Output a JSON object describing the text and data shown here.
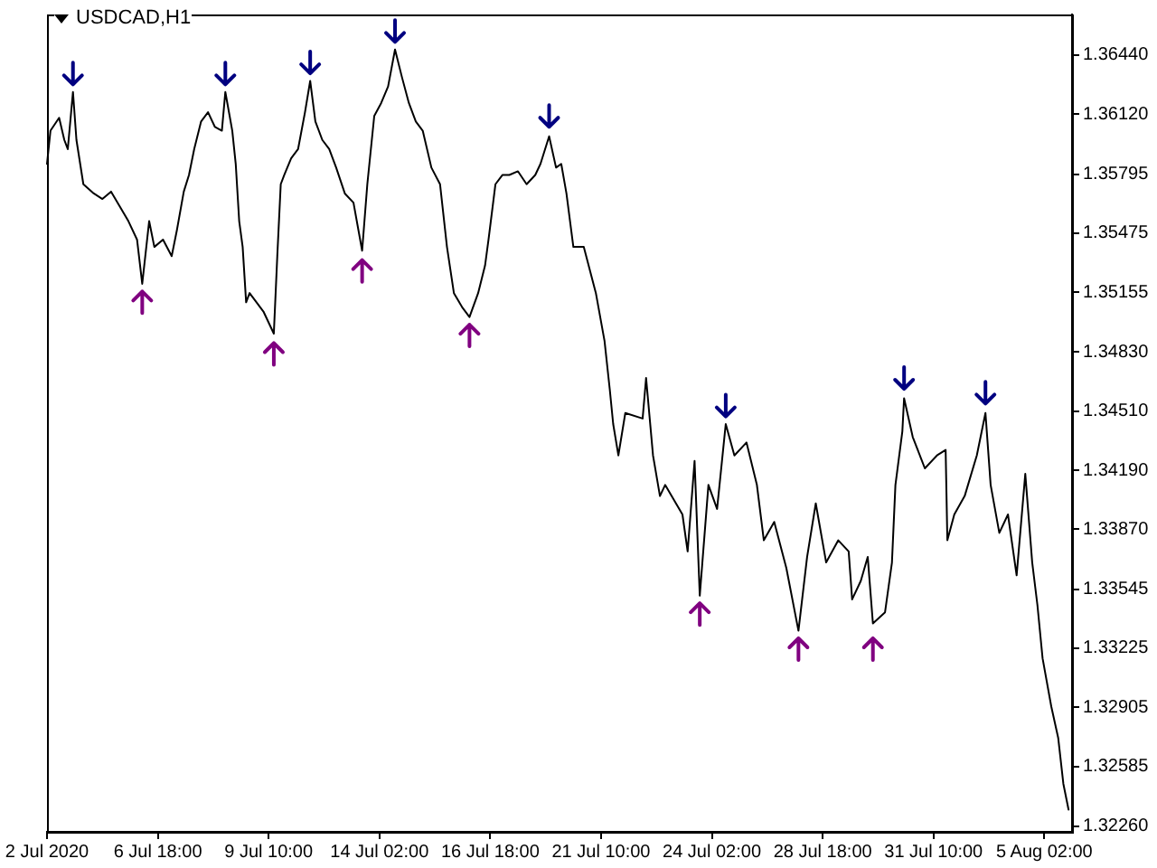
{
  "chart_data": {
    "type": "line",
    "title": "USDCAD,H1",
    "categories": [
      "2 Jul 2020",
      null,
      null,
      null,
      null,
      null,
      null,
      null,
      null,
      null,
      null,
      null,
      null,
      null,
      null,
      null,
      null,
      null,
      null,
      null,
      null,
      null,
      null,
      null,
      null,
      null,
      null,
      null,
      null,
      null,
      null,
      null,
      null,
      null,
      null,
      null,
      null,
      null,
      null,
      null,
      null,
      null,
      null,
      null,
      null,
      null,
      null,
      null,
      null,
      null,
      null,
      null,
      null,
      null,
      null,
      null,
      null,
      null,
      null,
      null,
      null,
      null,
      null,
      null,
      "6 Jul 18:00",
      null,
      null,
      null,
      null,
      null,
      null,
      null,
      null,
      null,
      null,
      null,
      null,
      null,
      null,
      null,
      null,
      null,
      null,
      null,
      null,
      null,
      null,
      null,
      null,
      null,
      null,
      null,
      null,
      null,
      null,
      null,
      null,
      null,
      null,
      null,
      null,
      null,
      null,
      null,
      null,
      null,
      null,
      null,
      null,
      null,
      null,
      null,
      null,
      null,
      null,
      null,
      null,
      null,
      null,
      null,
      null,
      null,
      null,
      null,
      null,
      null,
      null,
      null,
      "9 Jul 10:00",
      null,
      null,
      null,
      null,
      null,
      null,
      null,
      null,
      null,
      null,
      null,
      null,
      null,
      null,
      null,
      null,
      null,
      null,
      null,
      null,
      null,
      null,
      null,
      null,
      null,
      null,
      null,
      null,
      null,
      null,
      null,
      null,
      null,
      null,
      null,
      null,
      null,
      null,
      null,
      null,
      null,
      null,
      null,
      null,
      null,
      null,
      null,
      null,
      null,
      null,
      null,
      null,
      null,
      null,
      null,
      null,
      null,
      null,
      null,
      null,
      null,
      null,
      null,
      "14 Jul 02:00",
      null,
      null,
      null,
      null,
      null,
      null,
      null,
      null,
      null,
      null,
      null,
      null,
      null,
      null,
      null,
      null,
      null,
      null,
      null,
      null,
      null,
      null,
      null,
      null,
      null,
      null,
      null,
      null,
      null,
      null,
      null,
      null,
      null,
      null,
      null,
      null,
      null,
      null,
      null,
      null,
      null,
      null,
      null,
      null,
      null,
      null,
      null,
      null,
      null,
      null,
      null,
      null,
      null,
      null,
      null,
      null,
      null,
      null,
      null,
      null,
      null,
      null,
      null,
      "16 Jul 18:00",
      null,
      null,
      null,
      null,
      null,
      null,
      null,
      null,
      null,
      null,
      null,
      null,
      null,
      null,
      null,
      null,
      null,
      null,
      null,
      null,
      null,
      null,
      null,
      null,
      null,
      null,
      null,
      null,
      null,
      null,
      null,
      null,
      null,
      null,
      null,
      null,
      null,
      null,
      null,
      null,
      null,
      null,
      null,
      null,
      null,
      null,
      null,
      null,
      null,
      null,
      null,
      null,
      null,
      null,
      null,
      null,
      null,
      null,
      null,
      null,
      null,
      null,
      null,
      "21 Jul 10:00",
      null,
      null,
      null,
      null,
      null,
      null,
      null,
      null,
      null,
      null,
      null,
      null,
      null,
      null,
      null,
      null,
      null,
      null,
      null,
      null,
      null,
      null,
      null,
      null,
      null,
      null,
      null,
      null,
      null,
      null,
      null,
      null,
      null,
      null,
      null,
      null,
      null,
      null,
      null,
      null,
      null,
      null,
      null,
      null,
      null,
      null,
      null,
      null,
      null,
      null,
      null,
      null,
      null,
      null,
      null,
      null,
      null,
      null,
      null,
      null,
      null,
      null,
      null,
      "24 Jul 02:00",
      null,
      null,
      null,
      null,
      null,
      null,
      null,
      null,
      null,
      null,
      null,
      null,
      null,
      null,
      null,
      null,
      null,
      null,
      null,
      null,
      null,
      null,
      null,
      null,
      null,
      null,
      null,
      null,
      null,
      null,
      null,
      null,
      null,
      null,
      null,
      null,
      null,
      null,
      null,
      null,
      null,
      null,
      null,
      null,
      null,
      null,
      null,
      null,
      null,
      null,
      null,
      null,
      null,
      null,
      null,
      null,
      null,
      null,
      null,
      null,
      null,
      null,
      null,
      "28 Jul 18:00",
      null,
      null,
      null,
      null,
      null,
      null,
      null,
      null,
      null,
      null,
      null,
      null,
      null,
      null,
      null,
      null,
      null,
      null,
      null,
      null,
      null,
      null,
      null,
      null,
      null,
      null,
      null,
      null,
      null,
      null,
      null,
      null,
      null,
      null,
      null,
      null,
      null,
      null,
      null,
      null,
      null,
      null,
      null,
      null,
      null,
      null,
      null,
      null,
      null,
      null,
      null,
      null,
      null,
      null,
      null,
      null,
      null,
      null,
      null,
      null,
      null,
      null,
      null,
      "31 Jul 10:00",
      null,
      null,
      null,
      null,
      null,
      null,
      null,
      null,
      null,
      null,
      null,
      null,
      null,
      null,
      null,
      null,
      null,
      null,
      null,
      null,
      null,
      null,
      null,
      null,
      null,
      null,
      null,
      null,
      null,
      null,
      null,
      null,
      null,
      null,
      null,
      null,
      null,
      null,
      null,
      null,
      null,
      null,
      null,
      null,
      null,
      null,
      null,
      null,
      null,
      null,
      null,
      null,
      null,
      null,
      null,
      null,
      null,
      null,
      null,
      null,
      null,
      null,
      null,
      "5 Aug 02:00",
      null,
      null,
      null,
      null,
      null,
      null,
      null,
      null,
      null,
      null,
      null,
      null,
      null,
      null,
      null,
      null
    ],
    "series": [
      {
        "color": "#000000",
        "values": [
          1.3585,
          null,
          1.3603,
          null,
          null,
          null,
          null,
          1.361,
          null,
          null,
          1.3598,
          null,
          1.3593,
          null,
          null,
          1.3624,
          null,
          1.3598,
          null,
          null,
          null,
          1.3574,
          null,
          null,
          null,
          null,
          null,
          1.3569,
          null,
          null,
          null,
          null,
          1.3566,
          null,
          null,
          null,
          null,
          1.357,
          null,
          null,
          null,
          null,
          1.3562,
          null,
          null,
          null,
          null,
          1.3554,
          null,
          null,
          null,
          null,
          1.3544,
          null,
          null,
          1.352,
          null,
          null,
          null,
          1.3554,
          null,
          null,
          1.354,
          null,
          null,
          null,
          null,
          1.3544,
          null,
          null,
          null,
          null,
          1.3535,
          null,
          null,
          1.3549,
          null,
          null,
          null,
          1.357,
          null,
          null,
          1.3579,
          null,
          null,
          1.3593,
          null,
          null,
          null,
          1.3608,
          null,
          null,
          null,
          1.3613,
          null,
          null,
          null,
          1.3605,
          null,
          null,
          null,
          1.3603,
          null,
          1.3624,
          null,
          null,
          null,
          1.3603,
          null,
          1.3585,
          null,
          1.3554,
          null,
          1.354,
          null,
          1.351,
          null,
          1.3515,
          null,
          null,
          null,
          1.351,
          null,
          null,
          null,
          1.3505,
          null,
          null,
          null,
          null,
          null,
          1.3493,
          null,
          1.3535,
          null,
          1.3574,
          null,
          1.3579,
          null,
          null,
          null,
          1.3588,
          null,
          null,
          null,
          1.3593,
          null,
          null,
          null,
          1.3613,
          null,
          null,
          1.363,
          null,
          null,
          1.3608,
          null,
          null,
          null,
          1.3598,
          null,
          null,
          null,
          1.3593,
          null,
          null,
          null,
          1.3583,
          null,
          null,
          null,
          null,
          1.3569,
          null,
          null,
          null,
          null,
          1.3564,
          null,
          null,
          null,
          null,
          1.3538,
          null,
          null,
          1.3574,
          null,
          null,
          null,
          1.3611,
          null,
          null,
          null,
          1.3618,
          null,
          null,
          null,
          1.3627,
          null,
          null,
          null,
          1.3647,
          null,
          null,
          null,
          1.3632,
          null,
          null,
          null,
          1.3618,
          null,
          null,
          null,
          1.3608,
          null,
          null,
          null,
          1.3603,
          null,
          null,
          null,
          null,
          1.3583,
          null,
          null,
          null,
          null,
          1.3574,
          null,
          null,
          null,
          1.354,
          null,
          null,
          null,
          1.3515,
          null,
          null,
          null,
          null,
          1.3507,
          null,
          null,
          null,
          1.3502,
          null,
          null,
          null,
          null,
          1.3515,
          null,
          null,
          null,
          1.353,
          null,
          1.3544,
          null,
          null,
          null,
          1.3574,
          null,
          null,
          null,
          1.3579,
          null,
          null,
          null,
          1.3579,
          null,
          null,
          null,
          null,
          1.3581,
          null,
          null,
          null,
          null,
          1.3574,
          null,
          null,
          null,
          null,
          1.3579,
          null,
          null,
          1.3585,
          null,
          null,
          null,
          null,
          1.36,
          null,
          null,
          null,
          1.3583,
          null,
          null,
          1.3585,
          null,
          null,
          1.3569,
          null,
          null,
          null,
          1.354,
          null,
          null,
          null,
          null,
          null,
          1.354,
          null,
          null,
          null,
          null,
          null,
          null,
          1.3515,
          null,
          null,
          null,
          null,
          1.3489,
          null,
          null,
          1.3463,
          null,
          1.3444,
          null,
          null,
          1.3427,
          null,
          null,
          null,
          1.345,
          null,
          null,
          null,
          null,
          null,
          null,
          null,
          null,
          null,
          1.3447,
          null,
          1.3469,
          null,
          null,
          null,
          1.3427,
          null,
          null,
          null,
          1.3405,
          null,
          null,
          1.3411,
          null,
          null,
          null,
          null,
          null,
          null,
          null,
          null,
          null,
          1.3395,
          null,
          null,
          1.3375,
          null,
          null,
          null,
          1.3424,
          null,
          null,
          1.3351,
          null,
          null,
          null,
          null,
          1.3411,
          null,
          null,
          null,
          null,
          1.3398,
          null,
          null,
          null,
          null,
          1.3444,
          null,
          null,
          null,
          null,
          1.3427,
          null,
          null,
          null,
          null,
          null,
          null,
          1.3434,
          null,
          null,
          null,
          null,
          null,
          1.3411,
          null,
          null,
          null,
          1.3381,
          null,
          null,
          null,
          null,
          null,
          1.3391,
          null,
          null,
          null,
          null,
          null,
          null,
          1.3366,
          null,
          null,
          null,
          null,
          null,
          null,
          1.3332,
          null,
          null,
          null,
          null,
          1.3372,
          null,
          null,
          null,
          null,
          1.3401,
          null,
          null,
          null,
          null,
          null,
          1.3369,
          null,
          null,
          null,
          null,
          null,
          null,
          1.3381,
          null,
          null,
          null,
          null,
          null,
          1.3375,
          null,
          1.3349,
          null,
          null,
          null,
          null,
          1.3359,
          null,
          null,
          null,
          1.3372,
          null,
          null,
          1.3336,
          null,
          null,
          null,
          null,
          null,
          null,
          1.3342,
          null,
          null,
          null,
          1.3369,
          null,
          1.3411,
          null,
          null,
          null,
          1.344,
          1.3458,
          null,
          null,
          null,
          null,
          1.3437,
          null,
          null,
          null,
          null,
          null,
          null,
          1.342,
          null,
          null,
          null,
          null,
          null,
          null,
          1.3427,
          null,
          null,
          null,
          null,
          1.343,
          1.3381,
          null,
          null,
          null,
          1.3395,
          null,
          null,
          null,
          null,
          null,
          1.3405,
          null,
          null,
          null,
          null,
          null,
          null,
          1.3427,
          null,
          null,
          null,
          null,
          1.345,
          null,
          null,
          1.3411,
          null,
          null,
          null,
          null,
          1.3385,
          null,
          null,
          null,
          null,
          1.3395,
          null,
          null,
          null,
          null,
          1.3362,
          null,
          null,
          null,
          null,
          1.3417,
          null,
          null,
          null,
          1.3369,
          null,
          null,
          1.3346,
          null,
          null,
          1.3317,
          null,
          null,
          null,
          null,
          1.3291,
          null,
          null,
          null,
          1.3274,
          null,
          null,
          1.3249,
          null,
          null,
          1.3235,
          null,
          null
        ]
      },
      {
        "type": "scatter",
        "marker": "cross",
        "color": "#000080",
        "values": [
          null,
          null,
          null,
          null,
          null,
          null,
          null,
          null,
          null,
          null,
          null,
          null,
          null,
          null,
          null,
          1.3634,
          null,
          null,
          null,
          null,
          null,
          null,
          null,
          null,
          null,
          null,
          null,
          null,
          null,
          null,
          null,
          null,
          null,
          null,
          null,
          null,
          null,
          null,
          null,
          null,
          null,
          null,
          null,
          null,
          null,
          null,
          null,
          null,
          null,
          null,
          null,
          null,
          null,
          null,
          null,
          null,
          null,
          null,
          null,
          null,
          null,
          null,
          null,
          null,
          null,
          null,
          null,
          null,
          null,
          null,
          null,
          null,
          null,
          null,
          null,
          null,
          null,
          null,
          null,
          null,
          null,
          null,
          null,
          null,
          null,
          null,
          null,
          null,
          null,
          null,
          null,
          null,
          null,
          null,
          null,
          null,
          null,
          null,
          null,
          null,
          null,
          null,
          null,
          1.3634,
          null,
          null,
          null,
          null,
          null,
          null,
          null,
          null,
          null,
          null,
          null,
          null,
          null,
          null,
          null,
          null,
          null,
          null,
          null,
          null,
          null,
          null,
          null,
          null,
          null,
          null,
          null,
          null,
          null,
          null,
          null,
          null,
          null,
          null,
          null,
          null,
          null,
          null,
          null,
          null,
          null,
          null,
          null,
          null,
          null,
          null,
          null,
          null,
          1.364,
          null,
          null,
          null,
          null,
          null,
          null,
          null,
          null,
          null,
          null,
          null,
          null,
          null,
          null,
          null,
          null,
          null,
          null,
          null,
          null,
          null,
          null,
          null,
          null,
          null,
          null,
          null,
          null,
          null,
          null,
          null,
          null,
          null,
          null,
          null,
          null,
          null,
          null,
          null,
          null,
          null,
          null,
          null,
          null,
          null,
          null,
          null,
          null,
          1.3657,
          null,
          null,
          null,
          null,
          null,
          null,
          null,
          null,
          null,
          null,
          null,
          null,
          null,
          null,
          null,
          null,
          null,
          null,
          null,
          null,
          null,
          null,
          null,
          null,
          null,
          null,
          null,
          null,
          null,
          null,
          null,
          null,
          null,
          null,
          null,
          null,
          null,
          null,
          null,
          null,
          null,
          null,
          null,
          null,
          null,
          null,
          null,
          null,
          null,
          null,
          null,
          null,
          null,
          null,
          null,
          null,
          null,
          null,
          null,
          null,
          null,
          null,
          null,
          null,
          null,
          null,
          null,
          null,
          null,
          null,
          null,
          null,
          null,
          null,
          null,
          null,
          null,
          null,
          null,
          null,
          null,
          null,
          null,
          null,
          null,
          null,
          null,
          null,
          1.3611,
          null,
          null,
          null,
          null,
          null,
          null,
          null,
          null,
          null,
          null,
          null,
          null,
          null,
          null,
          null,
          null,
          null,
          null,
          null,
          null,
          null,
          null,
          null,
          null,
          null,
          null,
          null,
          null,
          null,
          null,
          null,
          null,
          null,
          null,
          null,
          null,
          null,
          null,
          null,
          null,
          null,
          null,
          null,
          null,
          null,
          null,
          null,
          null,
          null,
          null,
          null,
          null,
          null,
          null,
          null,
          null,
          null,
          null,
          null,
          null,
          null,
          null,
          null,
          null,
          null,
          null,
          null,
          null,
          null,
          null,
          null,
          null,
          null,
          null,
          null,
          null,
          null,
          null,
          null,
          null,
          null,
          null,
          null,
          null,
          null,
          null,
          null,
          null,
          null,
          null,
          null,
          null,
          null,
          null,
          null,
          null,
          null,
          null,
          null,
          null,
          null,
          1.3454,
          null,
          null,
          null,
          null,
          null,
          null,
          null,
          null,
          null,
          null,
          null,
          null,
          null,
          null,
          null,
          null,
          null,
          null,
          null,
          null,
          null,
          null,
          null,
          null,
          null,
          null,
          null,
          null,
          null,
          null,
          null,
          null,
          null,
          null,
          null,
          null,
          null,
          null,
          null,
          null,
          null,
          null,
          null,
          null,
          null,
          null,
          null,
          null,
          null,
          null,
          null,
          null,
          null,
          null,
          null,
          null,
          null,
          null,
          null,
          null,
          null,
          null,
          null,
          null,
          null,
          null,
          null,
          null,
          null,
          null,
          null,
          null,
          null,
          null,
          null,
          null,
          null,
          null,
          null,
          null,
          null,
          null,
          null,
          null,
          null,
          null,
          null,
          null,
          null,
          null,
          null,
          null,
          null,
          null,
          null,
          null,
          null,
          null,
          null,
          null,
          null,
          null,
          1.3469,
          null,
          null,
          null,
          null,
          null,
          null,
          null,
          null,
          null,
          null,
          null,
          null,
          null,
          null,
          null,
          null,
          null,
          null,
          null,
          null,
          null,
          null,
          null,
          null,
          null,
          null,
          null,
          null,
          null,
          null,
          null,
          null,
          null,
          null,
          null,
          null,
          null,
          null,
          null,
          null,
          null,
          null,
          null,
          null,
          null,
          null,
          1.3461,
          null,
          null,
          null,
          null,
          null,
          null,
          null,
          null,
          null,
          null,
          null,
          null,
          null,
          null,
          null,
          null,
          null,
          null,
          null,
          null,
          null,
          null,
          null,
          null,
          null,
          null,
          null,
          null,
          null,
          null,
          null,
          null,
          null,
          null,
          null,
          null,
          null,
          null,
          null,
          null,
          null,
          null,
          null,
          null,
          null,
          null,
          null,
          null,
          null,
          null
        ]
      },
      {
        "type": "scatter",
        "marker": "cross",
        "color": "#800080",
        "values": [
          null,
          null,
          null,
          null,
          null,
          null,
          null,
          null,
          null,
          null,
          null,
          null,
          null,
          null,
          null,
          null,
          null,
          null,
          null,
          null,
          null,
          null,
          null,
          null,
          null,
          null,
          null,
          null,
          null,
          null,
          null,
          null,
          null,
          null,
          null,
          null,
          null,
          null,
          null,
          null,
          null,
          null,
          null,
          null,
          null,
          null,
          null,
          null,
          null,
          null,
          null,
          null,
          null,
          null,
          null,
          1.351,
          null,
          null,
          null,
          null,
          null,
          null,
          null,
          null,
          null,
          null,
          null,
          null,
          null,
          null,
          null,
          null,
          null,
          null,
          null,
          null,
          null,
          null,
          null,
          null,
          null,
          null,
          null,
          null,
          null,
          null,
          null,
          null,
          null,
          null,
          null,
          null,
          null,
          null,
          null,
          null,
          null,
          null,
          null,
          null,
          null,
          null,
          null,
          null,
          null,
          null,
          null,
          null,
          null,
          null,
          null,
          null,
          null,
          null,
          null,
          null,
          null,
          null,
          null,
          null,
          null,
          null,
          null,
          null,
          null,
          null,
          null,
          null,
          null,
          null,
          null,
          1.3482,
          null,
          null,
          null,
          null,
          null,
          null,
          null,
          null,
          null,
          null,
          null,
          null,
          null,
          null,
          null,
          null,
          null,
          null,
          null,
          null,
          null,
          null,
          null,
          null,
          null,
          null,
          null,
          null,
          null,
          null,
          null,
          null,
          null,
          null,
          null,
          null,
          null,
          null,
          null,
          null,
          null,
          null,
          null,
          null,
          null,
          null,
          null,
          null,
          null,
          null,
          1.3527,
          null,
          null,
          null,
          null,
          null,
          null,
          null,
          null,
          null,
          null,
          null,
          null,
          null,
          null,
          null,
          null,
          null,
          null,
          null,
          null,
          null,
          null,
          null,
          null,
          null,
          null,
          null,
          null,
          null,
          null,
          null,
          null,
          null,
          null,
          null,
          null,
          null,
          null,
          null,
          null,
          null,
          null,
          null,
          null,
          null,
          null,
          null,
          null,
          null,
          null,
          null,
          null,
          null,
          null,
          null,
          null,
          null,
          null,
          null,
          null,
          null,
          1.3492,
          null,
          null,
          null,
          null,
          null,
          null,
          null,
          null,
          null,
          null,
          null,
          null,
          null,
          null,
          null,
          null,
          null,
          null,
          null,
          null,
          null,
          null,
          null,
          null,
          null,
          null,
          null,
          null,
          null,
          null,
          null,
          null,
          null,
          null,
          null,
          null,
          null,
          null,
          null,
          null,
          null,
          null,
          null,
          null,
          null,
          null,
          null,
          null,
          null,
          null,
          null,
          null,
          null,
          null,
          null,
          null,
          null,
          null,
          null,
          null,
          null,
          null,
          null,
          null,
          null,
          null,
          null,
          null,
          null,
          null,
          null,
          null,
          null,
          null,
          null,
          null,
          null,
          null,
          null,
          null,
          null,
          null,
          null,
          null,
          null,
          null,
          null,
          null,
          null,
          null,
          null,
          null,
          null,
          null,
          null,
          null,
          null,
          null,
          null,
          null,
          null,
          null,
          null,
          null,
          null,
          null,
          null,
          null,
          null,
          null,
          null,
          null,
          null,
          null,
          null,
          null,
          null,
          null,
          null,
          null,
          null,
          null,
          null,
          null,
          null,
          null,
          null,
          null,
          null,
          null,
          null,
          null,
          1.3341,
          null,
          null,
          null,
          null,
          null,
          null,
          null,
          null,
          null,
          null,
          null,
          null,
          null,
          null,
          null,
          null,
          null,
          null,
          null,
          null,
          null,
          null,
          null,
          null,
          null,
          null,
          null,
          null,
          null,
          null,
          null,
          null,
          null,
          null,
          null,
          null,
          null,
          null,
          null,
          null,
          null,
          null,
          null,
          null,
          null,
          null,
          null,
          null,
          null,
          null,
          null,
          null,
          null,
          null,
          null,
          null,
          1.3322,
          null,
          null,
          null,
          null,
          null,
          null,
          null,
          null,
          null,
          null,
          null,
          null,
          null,
          null,
          null,
          null,
          null,
          null,
          null,
          null,
          null,
          null,
          null,
          null,
          null,
          null,
          null,
          null,
          null,
          null,
          null,
          null,
          null,
          null,
          null,
          null,
          null,
          null,
          null,
          null,
          null,
          null,
          1.3322,
          null,
          null,
          null,
          null,
          null,
          null,
          null,
          null,
          null,
          null,
          null,
          null,
          null,
          null,
          null,
          null,
          null,
          null,
          null,
          null,
          null,
          null,
          null,
          null,
          null,
          null,
          null,
          null,
          null,
          null,
          null,
          null,
          null,
          null,
          null,
          null,
          null,
          null,
          null,
          null,
          null,
          null,
          null,
          null,
          null,
          null,
          null,
          null,
          null,
          null,
          null,
          null,
          null,
          null,
          null,
          null,
          null,
          null,
          null,
          null,
          null,
          null,
          null,
          null,
          null,
          null,
          null,
          null,
          null,
          null,
          null,
          null,
          null,
          null,
          null,
          null,
          null,
          null,
          null,
          null,
          null,
          null,
          null,
          null,
          null,
          null,
          null,
          null,
          null,
          null,
          null,
          null,
          null,
          null,
          null,
          null,
          null,
          null,
          null,
          null,
          null,
          null,
          null,
          null,
          null,
          null,
          null,
          null,
          null,
          null,
          null,
          null,
          null,
          null,
          null
        ]
      }
    ],
    "ylim": [
      1.3223,
      1.3666
    ],
    "yticks": [
      {
        "value": 1.3644,
        "label": "1.36440"
      },
      {
        "value": 1.3612,
        "label": "1.36120"
      },
      {
        "value": 1.35795,
        "label": "1.35795"
      },
      {
        "value": 1.35475,
        "label": "1.35475"
      },
      {
        "value": 1.35155,
        "label": "1.35155"
      },
      {
        "value": 1.3483,
        "label": "1.34830"
      },
      {
        "value": 1.3451,
        "label": "1.34510"
      },
      {
        "value": 1.3419,
        "label": "1.34190"
      },
      {
        "value": 1.3387,
        "label": "1.33870"
      },
      {
        "value": 1.33545,
        "label": "1.33545"
      },
      {
        "value": 1.33225,
        "label": "1.33225"
      },
      {
        "value": 1.32905,
        "label": "1.32905"
      },
      {
        "value": 1.32585,
        "label": "1.32585"
      },
      {
        "value": 1.3226,
        "label": "1.32260"
      }
    ],
    "grid": false,
    "legend": false,
    "marker": "none",
    "line_style": "solid"
  }
}
